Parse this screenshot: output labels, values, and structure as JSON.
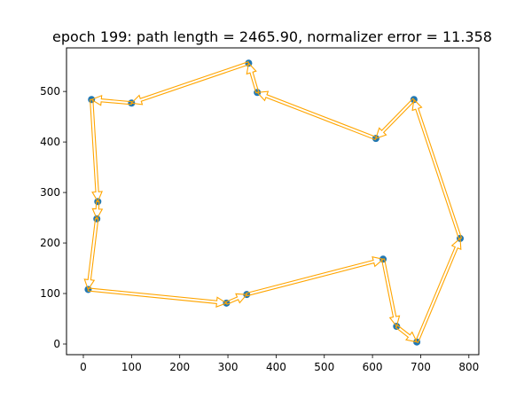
{
  "chart_data": {
    "type": "line",
    "title": "epoch 199: path length = 2465.90, normalizer error = 11.358",
    "xlabel": "",
    "ylabel": "",
    "xlim": [
      -35,
      820
    ],
    "ylim": [
      -22,
      585
    ],
    "xticks": [
      0,
      100,
      200,
      300,
      400,
      500,
      600,
      700,
      800
    ],
    "yticks": [
      0,
      100,
      200,
      300,
      400,
      500
    ],
    "grid": false,
    "legend": null,
    "series": [
      {
        "name": "cities",
        "kind": "scatter",
        "color": "#1f77b4",
        "points": [
          [
            17,
            484
          ],
          [
            30,
            282
          ],
          [
            28,
            248
          ],
          [
            10,
            108
          ],
          [
            297,
            81
          ],
          [
            339,
            98
          ],
          [
            622,
            168
          ],
          [
            650,
            35
          ],
          [
            692,
            4
          ],
          [
            782,
            209
          ],
          [
            686,
            484
          ],
          [
            607,
            407
          ],
          [
            361,
            498
          ],
          [
            343,
            556
          ],
          [
            100,
            477
          ]
        ]
      },
      {
        "name": "tour",
        "kind": "arrows",
        "color": "#ffa500",
        "order": [
          0,
          1,
          2,
          3,
          4,
          5,
          6,
          7,
          8,
          9,
          10,
          11,
          12,
          13,
          14,
          0
        ]
      }
    ],
    "annotations": {
      "path_length": 2465.9,
      "normalizer_error": 11.358,
      "epoch": 199
    }
  }
}
